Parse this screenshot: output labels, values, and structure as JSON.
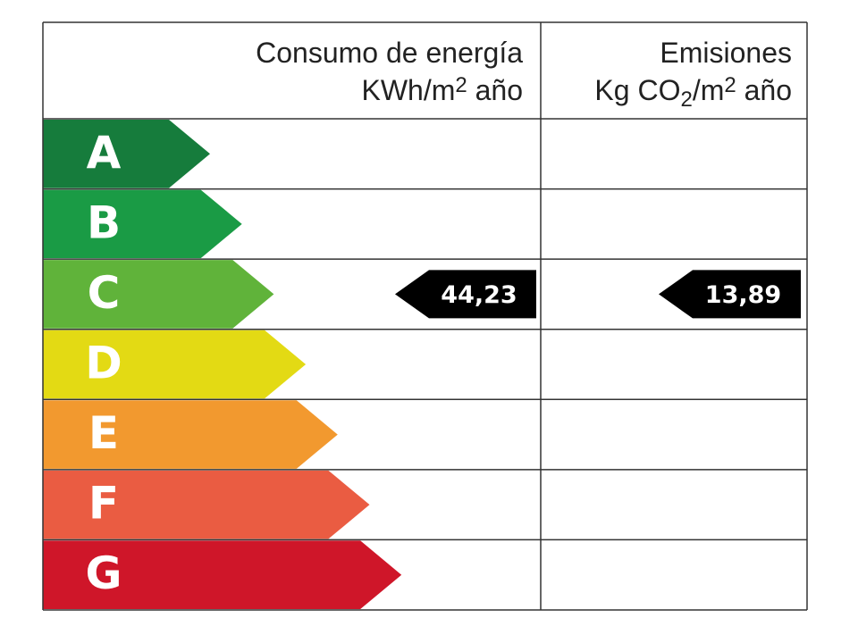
{
  "header": {
    "energy": {
      "line1": "Consumo de energía",
      "line2": [
        "KWh/m",
        "2",
        " año"
      ]
    },
    "emissions": {
      "line1": "Emisiones",
      "line2": [
        "Kg CO",
        "2",
        "/m",
        "2",
        " año"
      ]
    }
  },
  "rows": [
    {
      "letter": "A",
      "color": "#167c3c"
    },
    {
      "letter": "B",
      "color": "#1a9b45"
    },
    {
      "letter": "C",
      "color": "#60b33a",
      "energy": "44,23",
      "emissions": "13,89"
    },
    {
      "letter": "D",
      "color": "#e3da14"
    },
    {
      "letter": "E",
      "color": "#f2992f"
    },
    {
      "letter": "F",
      "color": "#ea5c42"
    },
    {
      "letter": "G",
      "color": "#cf1629"
    }
  ]
}
